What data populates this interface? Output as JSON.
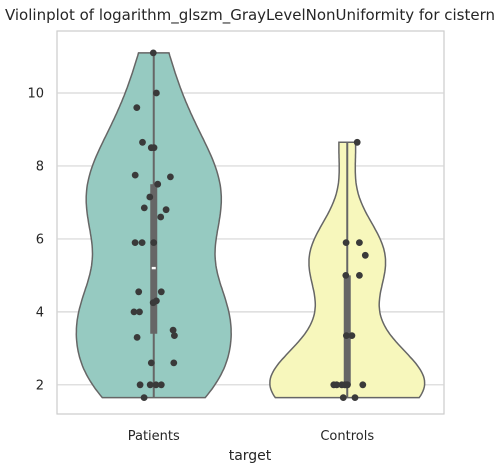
{
  "chart_data": {
    "type": "violin",
    "title": "Violinplot of logarithm_glszm_GrayLevelNonUniformity for cistern",
    "xlabel": "target",
    "ylabel": "",
    "categories": [
      "Patients",
      "Controls"
    ],
    "ylim": [
      1.2,
      11.7
    ],
    "yticks": [
      2,
      4,
      6,
      8,
      10
    ],
    "grid": "horizontal",
    "colors": {
      "Patients": "#96cac1",
      "Controls": "#f7f7bc",
      "outline": "#666666",
      "points": "#3a3a3a"
    },
    "series": [
      {
        "name": "Patients",
        "min": 1.65,
        "max": 11.1,
        "q1": 3.4,
        "median": 5.2,
        "q3": 7.5,
        "points": [
          11.1,
          10.0,
          9.6,
          8.65,
          8.5,
          8.5,
          7.75,
          7.7,
          7.5,
          7.15,
          6.85,
          6.8,
          6.6,
          5.9,
          5.9,
          5.9,
          4.55,
          4.55,
          4.3,
          4.25,
          4.0,
          4.0,
          3.5,
          3.35,
          3.3,
          2.6,
          2.6,
          2.0,
          2.0,
          2.0,
          2.0,
          1.65
        ]
      },
      {
        "name": "Controls",
        "min": 1.65,
        "max": 8.65,
        "q1": 2.0,
        "median": 2.0,
        "q3": 5.0,
        "points": [
          8.65,
          5.9,
          5.9,
          5.55,
          5.0,
          5.0,
          3.35,
          3.35,
          2.0,
          2.0,
          2.0,
          2.0,
          2.0,
          2.0,
          2.0,
          1.65,
          1.65
        ]
      }
    ]
  }
}
